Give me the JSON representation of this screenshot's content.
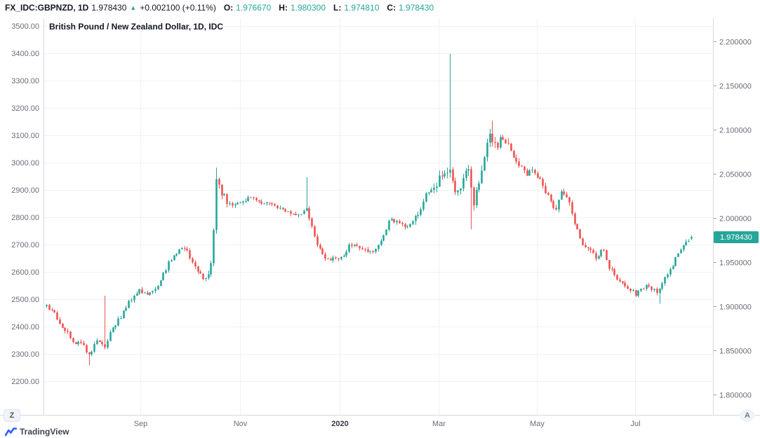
{
  "header": {
    "symbol": "FX_IDC:GBPNZD, 1D",
    "last": "1.978430",
    "direction_arrow": "▲",
    "change": "+0.002100 (+0.11%)",
    "ohlc": [
      {
        "label": "O:",
        "value": "1.976670"
      },
      {
        "label": "H:",
        "value": "1.980300"
      },
      {
        "label": "L:",
        "value": "1.974810"
      },
      {
        "label": "C:",
        "value": "1.978430"
      }
    ]
  },
  "chart_data": {
    "type": "candlestick",
    "title": "British Pound / New Zealand Dollar, 1D, IDC",
    "symbol": "FX_IDC:GBPNZD",
    "interval": "1D",
    "exchange": "IDC",
    "up_color": "#26a69a",
    "down_color": "#ef5350",
    "grid_color": "#eef1f6",
    "axis_line_color": "#d6d9e0",
    "axis_text_color": "#696d78",
    "y_axis_left_label_note": "left price scale",
    "y_left_ticks": [
      "3500.00",
      "3400.00",
      "3300.00",
      "3200.00",
      "3100.00",
      "3000.00",
      "2900.00",
      "2800.00",
      "2700.00",
      "2600.00",
      "2500.00",
      "2400.00",
      "2300.00",
      "2200.00"
    ],
    "y_right_ticks": [
      "2.200000",
      "2.150000",
      "2.100000",
      "2.050000",
      "2.000000",
      "1.950000",
      "1.900000",
      "1.850000",
      "1.800000"
    ],
    "y_right_values": [
      2.2,
      2.15,
      2.1,
      2.05,
      2.0,
      1.95,
      1.9,
      1.85,
      1.8
    ],
    "y_range_right": [
      1.8,
      2.2
    ],
    "x_ticks": [
      {
        "label": "Sep",
        "f": 0.145,
        "bold": false
      },
      {
        "label": "Nov",
        "f": 0.294,
        "bold": false
      },
      {
        "label": "2020",
        "f": 0.442,
        "bold": true
      },
      {
        "label": "Mar",
        "f": 0.59,
        "bold": false
      },
      {
        "label": "May",
        "f": 0.737,
        "bold": false
      },
      {
        "label": "Jul",
        "f": 0.884,
        "bold": false
      }
    ],
    "last_price": 1.97843,
    "last_price_label": "1.978430",
    "last_candle": {
      "o": 1.97667,
      "h": 1.9803,
      "l": 1.97481,
      "c": 1.97843
    },
    "candle_count": 244,
    "seed": 20,
    "price_path": [
      [
        0.0,
        1.9
      ],
      [
        0.01,
        1.893
      ],
      [
        0.026,
        1.876
      ],
      [
        0.042,
        1.86
      ],
      [
        0.057,
        1.856
      ],
      [
        0.067,
        1.844
      ],
      [
        0.078,
        1.861
      ],
      [
        0.091,
        1.853
      ],
      [
        0.102,
        1.875
      ],
      [
        0.115,
        1.887
      ],
      [
        0.131,
        1.908
      ],
      [
        0.144,
        1.919
      ],
      [
        0.159,
        1.913
      ],
      [
        0.174,
        1.925
      ],
      [
        0.189,
        1.948
      ],
      [
        0.205,
        1.962
      ],
      [
        0.215,
        1.967
      ],
      [
        0.23,
        1.944
      ],
      [
        0.244,
        1.929
      ],
      [
        0.254,
        1.936
      ],
      [
        0.26,
        1.99
      ],
      [
        0.263,
        2.042
      ],
      [
        0.272,
        2.026
      ],
      [
        0.287,
        2.012
      ],
      [
        0.305,
        2.021
      ],
      [
        0.322,
        2.022
      ],
      [
        0.34,
        2.016
      ],
      [
        0.357,
        2.011
      ],
      [
        0.374,
        2.006
      ],
      [
        0.389,
        2.003
      ],
      [
        0.403,
        2.012
      ],
      [
        0.413,
        1.984
      ],
      [
        0.427,
        1.958
      ],
      [
        0.442,
        1.952
      ],
      [
        0.457,
        1.956
      ],
      [
        0.472,
        1.971
      ],
      [
        0.49,
        1.967
      ],
      [
        0.507,
        1.961
      ],
      [
        0.522,
        1.979
      ],
      [
        0.533,
        1.999
      ],
      [
        0.548,
        1.992
      ],
      [
        0.564,
        1.991
      ],
      [
        0.579,
        2.01
      ],
      [
        0.592,
        2.031
      ],
      [
        0.605,
        2.041
      ],
      [
        0.618,
        2.049
      ],
      [
        0.627,
        2.054
      ],
      [
        0.635,
        2.021
      ],
      [
        0.644,
        2.044
      ],
      [
        0.653,
        2.058
      ],
      [
        0.662,
        2.012
      ],
      [
        0.67,
        2.039
      ],
      [
        0.679,
        2.074
      ],
      [
        0.688,
        2.093
      ],
      [
        0.699,
        2.083
      ],
      [
        0.709,
        2.094
      ],
      [
        0.72,
        2.076
      ],
      [
        0.733,
        2.059
      ],
      [
        0.746,
        2.049
      ],
      [
        0.757,
        2.054
      ],
      [
        0.768,
        2.041
      ],
      [
        0.779,
        2.021
      ],
      [
        0.79,
        2.009
      ],
      [
        0.799,
        2.033
      ],
      [
        0.81,
        2.016
      ],
      [
        0.82,
        1.991
      ],
      [
        0.831,
        1.973
      ],
      [
        0.842,
        1.961
      ],
      [
        0.853,
        1.956
      ],
      [
        0.862,
        1.967
      ],
      [
        0.87,
        1.946
      ],
      [
        0.881,
        1.935
      ],
      [
        0.892,
        1.926
      ],
      [
        0.903,
        1.92
      ],
      [
        0.914,
        1.913
      ],
      [
        0.925,
        1.921
      ],
      [
        0.936,
        1.922
      ],
      [
        0.947,
        1.917
      ],
      [
        0.957,
        1.929
      ],
      [
        0.968,
        1.943
      ],
      [
        0.979,
        1.959
      ],
      [
        0.99,
        1.971
      ],
      [
        1.0,
        1.978
      ]
    ],
    "spikes": [
      {
        "t": 0.067,
        "low": 1.833
      },
      {
        "t": 0.091,
        "high": 1.912
      },
      {
        "t": 0.263,
        "high": 2.057
      },
      {
        "t": 0.405,
        "high": 2.046
      },
      {
        "t": 0.627,
        "high": 2.186
      },
      {
        "t": 0.657,
        "low": 1.987
      },
      {
        "t": 0.69,
        "high": 2.11
      },
      {
        "t": 0.949,
        "low": 1.903
      }
    ],
    "volatility": [
      {
        "from": 0.0,
        "to": 0.25,
        "v": 0.006
      },
      {
        "from": 0.25,
        "to": 0.28,
        "v": 0.01
      },
      {
        "from": 0.28,
        "to": 0.57,
        "v": 0.006
      },
      {
        "from": 0.57,
        "to": 0.72,
        "v": 0.012
      },
      {
        "from": 0.72,
        "to": 0.86,
        "v": 0.008
      },
      {
        "from": 0.86,
        "to": 1.01,
        "v": 0.0055
      }
    ]
  },
  "buttons": {
    "timezone": "Z",
    "auto_scale": "A"
  },
  "footer": {
    "brand": "TradingView"
  }
}
